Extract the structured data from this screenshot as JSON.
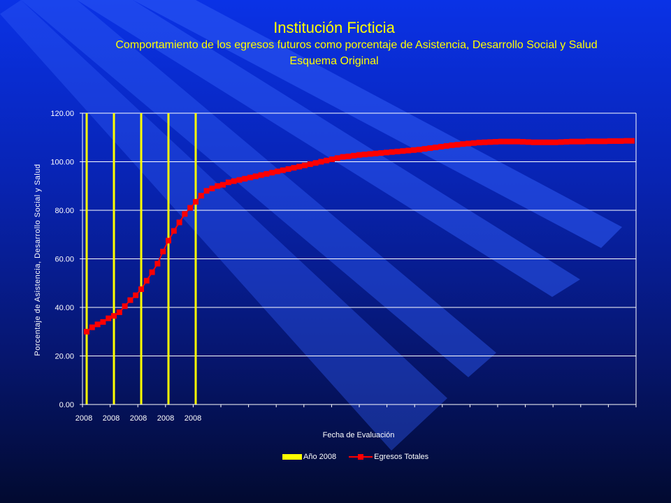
{
  "header": {
    "title": "Institución Ficticia",
    "subtitle": "Comportamiento de los egresos futuros como porcentaje de Asistencia, Desarrollo Social y Salud",
    "scheme": "Esquema Original"
  },
  "colors": {
    "background_top": "#0a32e6",
    "background_bottom": "#020a30",
    "text_title": "#ffff00",
    "marker": "#ff0000",
    "year_line": "#ffff00",
    "grid": "#ffffff"
  },
  "chart_data": {
    "type": "line",
    "xlabel": "Fecha de Evaluación",
    "ylabel": "Porcentaje de Asistencia, Desarrollo Social y Salud",
    "ylim": [
      0,
      120
    ],
    "yticks": [
      "0.00",
      "20.00",
      "40.00",
      "60.00",
      "80.00",
      "100.00",
      "120.00"
    ],
    "xtick_labels": [
      "2008",
      "2008",
      "2008",
      "2008",
      "2008"
    ],
    "grid": true,
    "legend_position": "bottom",
    "series": [
      {
        "name": "Año 2008",
        "kind": "vertical-bar-lines",
        "color": "#ffff00",
        "x_index": [
          0,
          5,
          10,
          15,
          20
        ]
      },
      {
        "name": "Egresos Totales",
        "kind": "line-with-markers",
        "color": "#ff0000",
        "values": [
          30.0,
          31.8,
          33.0,
          34.0,
          35.5,
          36.5,
          38.0,
          40.5,
          43.0,
          45.0,
          47.5,
          51.0,
          54.5,
          58.0,
          63.0,
          67.5,
          71.5,
          75.0,
          78.5,
          81.0,
          83.5,
          86.0,
          88.0,
          89.0,
          90.0,
          90.5,
          91.5,
          92.0,
          92.5,
          93.0,
          93.5,
          94.0,
          94.5,
          95.0,
          95.5,
          96.0,
          96.5,
          97.0,
          97.5,
          98.0,
          98.5,
          99.0,
          99.5,
          100.0,
          100.5,
          101.0,
          101.5,
          102.0,
          102.2,
          102.5,
          102.8,
          103.0,
          103.2,
          103.4,
          103.6,
          103.8,
          104.0,
          104.2,
          104.4,
          104.6,
          104.8,
          105.0,
          105.3,
          105.6,
          105.9,
          106.2,
          106.5,
          106.8,
          107.0,
          107.3,
          107.5,
          107.7,
          107.9,
          108.0,
          108.1,
          108.2,
          108.3,
          108.3,
          108.3,
          108.3,
          108.2,
          108.1,
          108.0,
          108.0,
          108.0,
          108.0,
          108.0,
          108.1,
          108.2,
          108.3,
          108.3,
          108.3,
          108.4,
          108.4,
          108.4,
          108.4,
          108.5,
          108.5,
          108.5,
          108.6,
          108.6
        ]
      }
    ]
  }
}
